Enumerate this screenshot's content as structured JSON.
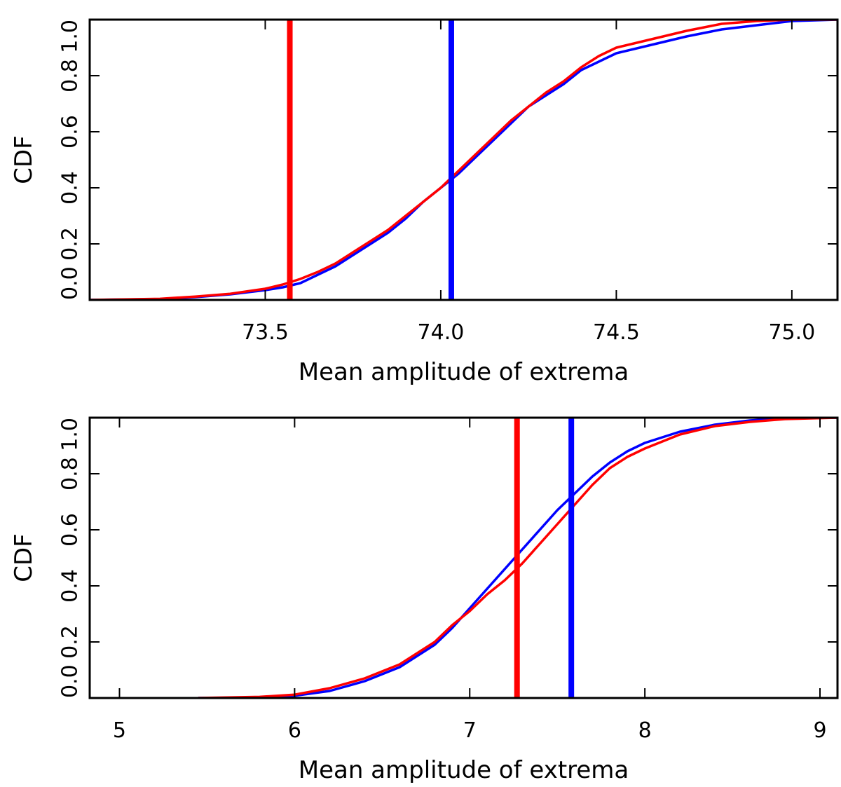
{
  "chart_data": [
    {
      "type": "line",
      "xlabel": "Mean amplitude of extrema",
      "ylabel": "CDF",
      "xlim": [
        73.0,
        75.13
      ],
      "ylim": [
        0.0,
        1.0
      ],
      "xticks": [
        73.5,
        74.0,
        74.5,
        75.0
      ],
      "xtick_labels": [
        "73.5",
        "74.0",
        "74.5",
        "75.0"
      ],
      "yticks": [
        0.0,
        0.2,
        0.4,
        0.6,
        0.8,
        1.0
      ],
      "ytick_labels": [
        "0.0",
        "0.2",
        "0.4",
        "0.6",
        "0.8",
        "1.0"
      ],
      "series": [
        {
          "name": "blue",
          "color": "#0000ff",
          "x": [
            73.0,
            73.2,
            73.3,
            73.4,
            73.5,
            73.55,
            73.6,
            73.65,
            73.7,
            73.75,
            73.8,
            73.85,
            73.9,
            73.95,
            74.0,
            74.05,
            74.1,
            74.15,
            74.2,
            74.25,
            74.3,
            74.35,
            74.4,
            74.45,
            74.5,
            74.6,
            74.7,
            74.8,
            74.9,
            75.0,
            75.13
          ],
          "y": [
            0.0,
            0.003,
            0.01,
            0.02,
            0.035,
            0.045,
            0.06,
            0.09,
            0.12,
            0.16,
            0.2,
            0.24,
            0.29,
            0.35,
            0.4,
            0.45,
            0.51,
            0.57,
            0.63,
            0.69,
            0.73,
            0.77,
            0.82,
            0.85,
            0.88,
            0.91,
            0.94,
            0.965,
            0.98,
            0.995,
            1.0
          ]
        },
        {
          "name": "red",
          "color": "#ff0000",
          "x": [
            73.0,
            73.2,
            73.3,
            73.4,
            73.5,
            73.55,
            73.6,
            73.65,
            73.7,
            73.75,
            73.8,
            73.85,
            73.9,
            73.95,
            74.0,
            74.05,
            74.1,
            74.15,
            74.2,
            74.25,
            74.3,
            74.35,
            74.4,
            74.45,
            74.5,
            74.6,
            74.7,
            74.8,
            74.9,
            75.0,
            75.13
          ],
          "y": [
            0.0,
            0.004,
            0.012,
            0.022,
            0.04,
            0.055,
            0.075,
            0.1,
            0.13,
            0.17,
            0.21,
            0.25,
            0.3,
            0.35,
            0.4,
            0.46,
            0.52,
            0.58,
            0.64,
            0.69,
            0.74,
            0.78,
            0.83,
            0.87,
            0.9,
            0.93,
            0.96,
            0.985,
            0.995,
            1.0,
            1.0
          ]
        }
      ],
      "vlines": [
        {
          "name": "red",
          "x": 73.57,
          "color": "#ff0000"
        },
        {
          "name": "blue",
          "x": 74.03,
          "color": "#0000ff"
        }
      ]
    },
    {
      "type": "line",
      "xlabel": "Mean amplitude of extrema",
      "ylabel": "CDF",
      "xlim": [
        4.83,
        9.1
      ],
      "ylim": [
        0.0,
        1.0
      ],
      "xticks": [
        5,
        6,
        7,
        8,
        9
      ],
      "xtick_labels": [
        "5",
        "6",
        "7",
        "8",
        "9"
      ],
      "yticks": [
        0.0,
        0.2,
        0.4,
        0.6,
        0.8,
        1.0
      ],
      "ytick_labels": [
        "0.0",
        "0.2",
        "0.4",
        "0.6",
        "0.8",
        "1.0"
      ],
      "series": [
        {
          "name": "blue",
          "color": "#0000ff",
          "x": [
            5.45,
            5.8,
            6.0,
            6.2,
            6.4,
            6.6,
            6.8,
            6.9,
            7.0,
            7.1,
            7.2,
            7.3,
            7.4,
            7.5,
            7.6,
            7.7,
            7.8,
            7.9,
            8.0,
            8.2,
            8.4,
            8.6,
            8.8,
            9.1
          ],
          "y": [
            0.0,
            0.002,
            0.008,
            0.025,
            0.06,
            0.11,
            0.19,
            0.25,
            0.32,
            0.39,
            0.46,
            0.53,
            0.6,
            0.67,
            0.73,
            0.79,
            0.84,
            0.88,
            0.91,
            0.95,
            0.975,
            0.99,
            0.998,
            1.0
          ]
        },
        {
          "name": "red",
          "color": "#ff0000",
          "x": [
            5.45,
            5.8,
            6.0,
            6.2,
            6.4,
            6.6,
            6.8,
            6.9,
            7.0,
            7.1,
            7.2,
            7.3,
            7.4,
            7.5,
            7.6,
            7.7,
            7.8,
            7.9,
            8.0,
            8.2,
            8.4,
            8.6,
            8.8,
            9.1
          ],
          "y": [
            0.0,
            0.004,
            0.012,
            0.035,
            0.07,
            0.12,
            0.2,
            0.26,
            0.31,
            0.37,
            0.42,
            0.48,
            0.55,
            0.62,
            0.69,
            0.76,
            0.82,
            0.86,
            0.89,
            0.94,
            0.97,
            0.985,
            0.995,
            1.0
          ]
        }
      ],
      "vlines": [
        {
          "name": "red",
          "x": 7.27,
          "color": "#ff0000"
        },
        {
          "name": "blue",
          "x": 7.58,
          "color": "#0000ff"
        }
      ]
    }
  ]
}
